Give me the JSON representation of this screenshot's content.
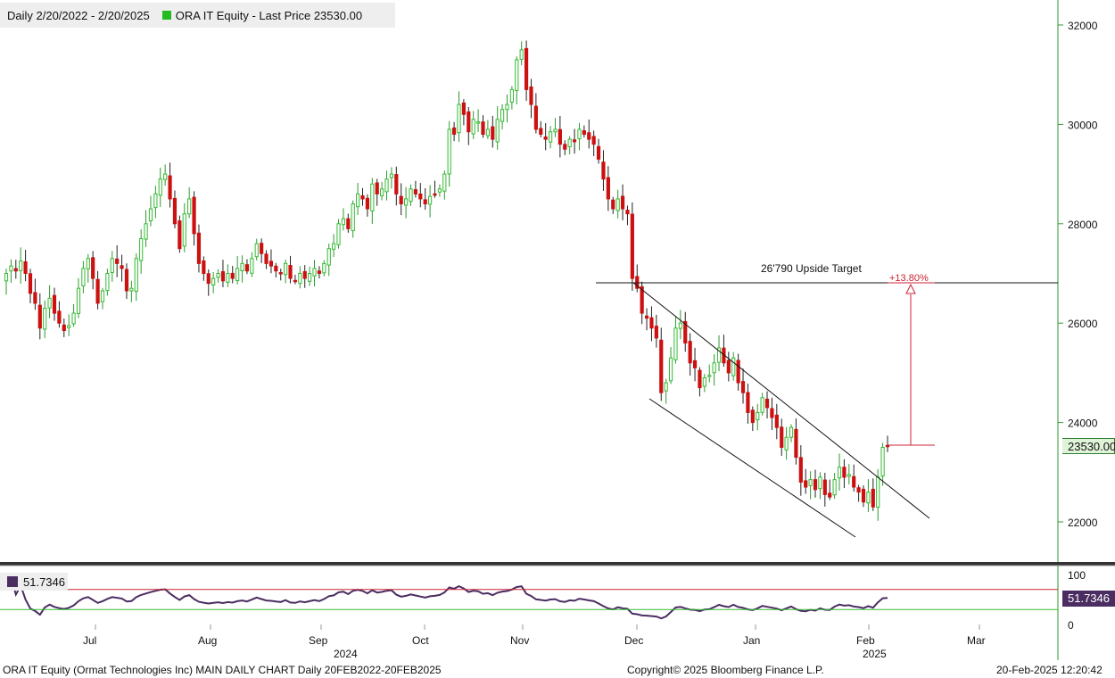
{
  "header": {
    "period": "Daily 2/20/2022 - 2/20/2025",
    "series_label": "ORA IT Equity - Last Price 23530.00",
    "series_color": "#22bb22"
  },
  "rsi": {
    "legend_value": "51.7346",
    "tag_value": "51.7346",
    "color": "#4b2d62",
    "upper_level": 70,
    "lower_level": 30,
    "axis_labels": [
      "100",
      "0"
    ]
  },
  "price_tag": "23530.00",
  "annotations": {
    "target_label": "26'790 Upside Target",
    "pct_label": "+13.80%",
    "target_value": 26790
  },
  "footer": {
    "left": "ORA IT Equity (Ormat Technologies Inc) MAIN DAILY CHART  Daily 20FEB2022-20FEB2025",
    "center": "Copyright© 2025 Bloomberg Finance L.P.",
    "right": "20-Feb-2025 12:20:42"
  },
  "colors": {
    "up": "#33bb33",
    "down": "#cc1111",
    "target": "#cc2233"
  },
  "chart_data": {
    "type": "candlestick",
    "ylim": [
      21000,
      32500
    ],
    "y_ticks": [
      22000,
      24000,
      26000,
      28000,
      30000,
      32000
    ],
    "y_tick_labels": [
      "22000",
      "24000",
      "26000",
      "28000",
      "30000",
      "32000"
    ],
    "x_labels": [
      "Jul",
      "Aug",
      "Sep",
      "Oct",
      "Nov",
      "Dec",
      "Jan",
      "Feb",
      "Mar"
    ],
    "year_labels": [
      {
        "label": "2024",
        "under": "Sep"
      },
      {
        "label": "2025",
        "under": "Feb"
      }
    ],
    "last_price": 23530,
    "closes": [
      27000,
      27150,
      27050,
      27250,
      27000,
      26600,
      26400,
      25900,
      26300,
      26500,
      26200,
      26000,
      25850,
      25950,
      26200,
      26700,
      27100,
      27300,
      26900,
      26400,
      26650,
      27000,
      27300,
      27200,
      27100,
      26650,
      26700,
      27300,
      27700,
      28000,
      28300,
      28600,
      28900,
      29000,
      28500,
      28000,
      27500,
      28200,
      28500,
      27800,
      27200,
      27000,
      26800,
      26900,
      27000,
      26850,
      27000,
      26900,
      27100,
      27200,
      27050,
      27300,
      27600,
      27400,
      27200,
      27150,
      27050,
      27000,
      27200,
      26900,
      26850,
      27000,
      26900,
      27000,
      27100,
      27000,
      27200,
      27500,
      27600,
      28000,
      28100,
      27900,
      28400,
      28600,
      28500,
      28300,
      28800,
      28600,
      28700,
      28900,
      29000,
      28600,
      28400,
      28500,
      28700,
      28600,
      28500,
      28400,
      28550,
      28600,
      28700,
      29000,
      29900,
      29800,
      30400,
      30200,
      29850,
      30100,
      30050,
      29800,
      29900,
      29700,
      30100,
      30300,
      30400,
      30700,
      31300,
      31500,
      30700,
      30400,
      29900,
      29800,
      29700,
      29850,
      29900,
      29600,
      29500,
      29700,
      29650,
      29900,
      29800,
      29700,
      29600,
      29300,
      28900,
      28500,
      28300,
      28500,
      28300,
      28200,
      26900,
      26700,
      26200,
      26100,
      25900,
      25700,
      24600,
      24800,
      25300,
      25900,
      26000,
      25600,
      25200,
      25100,
      24700,
      24900,
      24950,
      25200,
      25500,
      25200,
      25000,
      25300,
      24800,
      24600,
      24200,
      24000,
      24200,
      24500,
      24300,
      24100,
      23900,
      23500,
      23700,
      23900,
      23300,
      22800,
      22700,
      22850,
      22650,
      22900,
      22550,
      22500,
      22850,
      23100,
      22900,
      22950,
      22700,
      22600,
      22400,
      22600,
      22300,
      22900,
      23500,
      23530
    ]
  }
}
